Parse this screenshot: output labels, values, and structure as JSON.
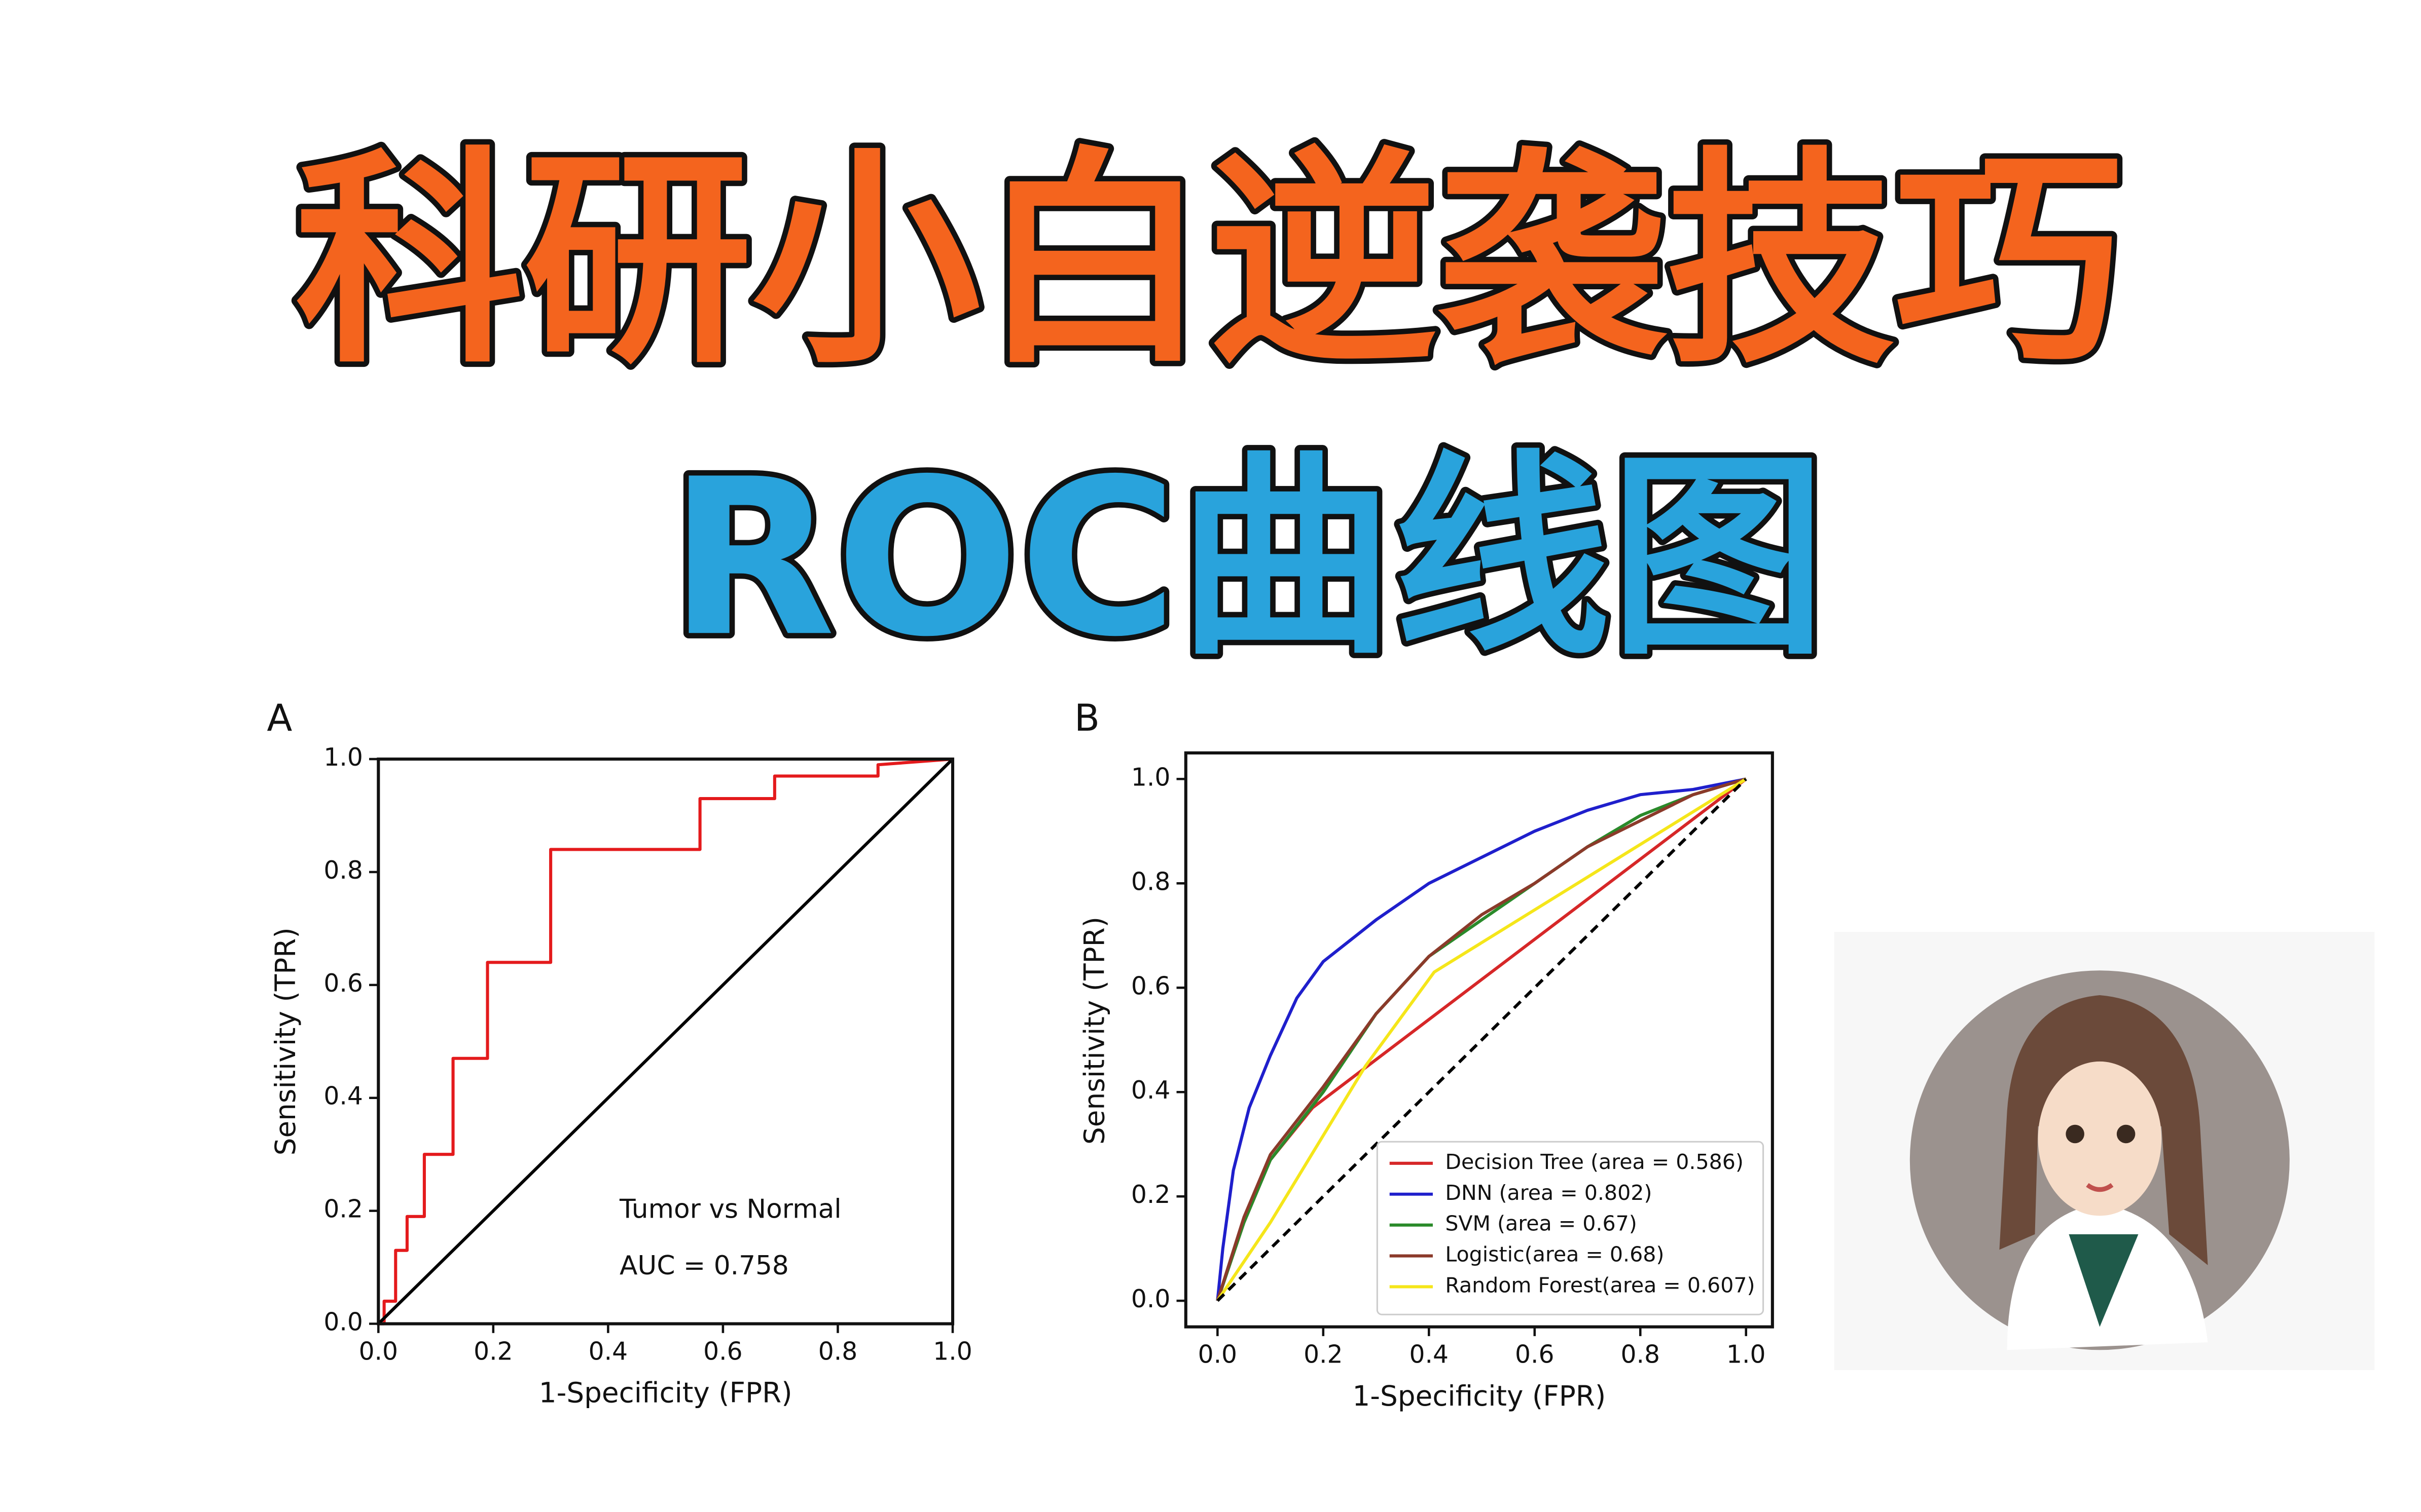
{
  "header": {
    "title": "科研小白逆袭技巧",
    "subtitle": "ROC曲线图"
  },
  "chart_data": [
    {
      "type": "line",
      "panel": "A",
      "xlabel": "1-Specificity (FPR)",
      "ylabel": "Sensitivity (TPR)",
      "annotations": [
        "Tumor vs Normal",
        "AUC = 0.758"
      ],
      "xlim": [
        0,
        1
      ],
      "ylim": [
        0,
        1
      ],
      "xticks": [
        {
          "value": 0,
          "label": "0.0"
        },
        0.2,
        0.4,
        0.6,
        0.8,
        {
          "value": 1,
          "label": "1.0"
        }
      ],
      "yticks": [
        {
          "value": 0,
          "label": "0.0"
        },
        0.2,
        0.4,
        0.6,
        0.8,
        {
          "value": 1,
          "label": "1.0"
        }
      ],
      "grid": false,
      "series": [
        {
          "color": "#e41a1c",
          "linestyle": "solid",
          "x": [
            0,
            0.01,
            0.01,
            0.03,
            0.03,
            0.05,
            0.05,
            0.08,
            0.08,
            0.13,
            0.13,
            0.19,
            0.19,
            0.3,
            0.3,
            0.56,
            0.56,
            0.69,
            0.69,
            0.87,
            0.87,
            1
          ],
          "values": [
            0,
            0,
            0.04,
            0.04,
            0.13,
            0.13,
            0.19,
            0.19,
            0.3,
            0.3,
            0.47,
            0.47,
            0.64,
            0.64,
            0.84,
            0.84,
            0.93,
            0.93,
            0.97,
            0.97,
            0.99,
            1
          ]
        },
        {
          "color": "#000000",
          "linestyle": "solid",
          "x": [
            0,
            1
          ],
          "values": [
            0,
            1
          ]
        }
      ]
    },
    {
      "type": "line",
      "panel": "B",
      "xlabel": "1-Specificity (FPR)",
      "ylabel": "Sensitivity (TPR)",
      "xlim": [
        -0.06,
        1.05
      ],
      "ylim": [
        -0.05,
        1.05
      ],
      "xticks": [
        {
          "value": 0,
          "label": "0.0"
        },
        0.2,
        0.4,
        0.6,
        0.8,
        {
          "value": 1,
          "label": "1.0"
        }
      ],
      "yticks": [
        {
          "value": 0,
          "label": "0.0"
        },
        0.2,
        0.4,
        0.6,
        0.8,
        {
          "value": 1,
          "label": "1.0"
        }
      ],
      "grid": false,
      "legend": "lower right",
      "series": [
        {
          "name": "Decision Tree (area = 0.586)",
          "color": "#d62728",
          "linestyle": "solid",
          "x": [
            0,
            0.05,
            0.1,
            0.18,
            1
          ],
          "values": [
            0,
            0.15,
            0.27,
            0.37,
            1
          ]
        },
        {
          "name": "DNN (area = 0.802)",
          "color": "#1f1fcc",
          "linestyle": "solid",
          "x": [
            0,
            0.01,
            0.03,
            0.06,
            0.1,
            0.15,
            0.2,
            0.3,
            0.4,
            0.5,
            0.6,
            0.7,
            0.8,
            0.9,
            1
          ],
          "values": [
            0,
            0.1,
            0.25,
            0.37,
            0.47,
            0.58,
            0.65,
            0.73,
            0.8,
            0.85,
            0.9,
            0.94,
            0.97,
            0.98,
            1
          ]
        },
        {
          "name": "SVM (area = 0.67)",
          "color": "#2a8a2a",
          "linestyle": "solid",
          "x": [
            0,
            0.05,
            0.1,
            0.2,
            0.3,
            0.4,
            0.5,
            0.6,
            0.7,
            0.8,
            0.9,
            1
          ],
          "values": [
            0,
            0.15,
            0.27,
            0.4,
            0.55,
            0.66,
            0.73,
            0.8,
            0.87,
            0.93,
            0.97,
            1
          ]
        },
        {
          "name": "Logistic(area = 0.68)",
          "color": "#8b3a2a",
          "linestyle": "solid",
          "x": [
            0,
            0.05,
            0.1,
            0.2,
            0.3,
            0.4,
            0.5,
            0.6,
            0.7,
            0.8,
            0.9,
            1
          ],
          "values": [
            0,
            0.16,
            0.28,
            0.41,
            0.55,
            0.66,
            0.74,
            0.8,
            0.87,
            0.92,
            0.97,
            1
          ]
        },
        {
          "name": "Random Forest(area = 0.607)",
          "color": "#f5e61a",
          "linestyle": "solid",
          "x": [
            0,
            0.1,
            0.28,
            0.41,
            1
          ],
          "values": [
            0,
            0.15,
            0.45,
            0.63,
            1
          ]
        },
        {
          "color": "#000000",
          "linestyle": "dashed",
          "x": [
            0,
            1
          ],
          "values": [
            0,
            1
          ]
        }
      ]
    }
  ]
}
